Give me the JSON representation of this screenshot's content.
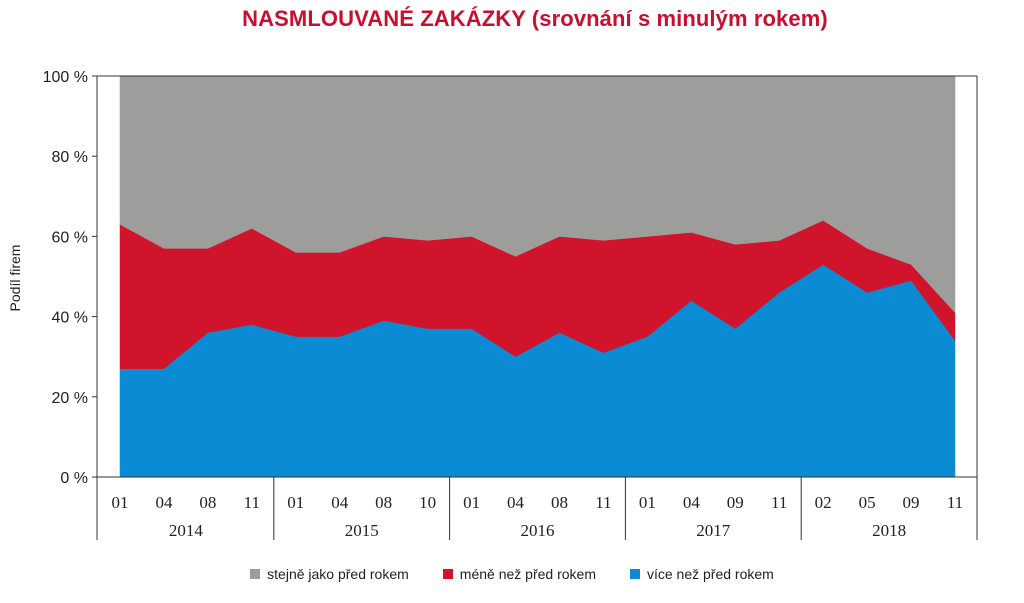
{
  "chart_data": {
    "type": "area",
    "stacked": true,
    "title": "NASMLOUVANÉ ZAKÁZKY (srovnání s minulým rokem)",
    "ylabel": "Podíl firem",
    "ylim": [
      0,
      100
    ],
    "y_ticks": [
      "0 %",
      "20 %",
      "40 %",
      "60 %",
      "80 %",
      "100 %"
    ],
    "y_tick_values": [
      0,
      20,
      40,
      60,
      80,
      100
    ],
    "categories": [
      "01",
      "04",
      "08",
      "11",
      "01",
      "04",
      "08",
      "10",
      "01",
      "04",
      "08",
      "11",
      "01",
      "04",
      "09",
      "11",
      "02",
      "05",
      "09",
      "11"
    ],
    "years": [
      {
        "label": "2014",
        "count": 4
      },
      {
        "label": "2015",
        "count": 4
      },
      {
        "label": "2016",
        "count": 4
      },
      {
        "label": "2017",
        "count": 4
      },
      {
        "label": "2018",
        "count": 4
      }
    ],
    "series": [
      {
        "name": "více než před rokem",
        "color": "#0a8bd3",
        "values": [
          27,
          27,
          36,
          38,
          35,
          35,
          39,
          37,
          37,
          30,
          36,
          31,
          35,
          44,
          37,
          46,
          53,
          46,
          49,
          34
        ]
      },
      {
        "name": "méně než před rokem",
        "color": "#d0142c",
        "values": [
          36,
          30,
          21,
          24,
          21,
          21,
          21,
          22,
          23,
          25,
          24,
          28,
          25,
          17,
          21,
          13,
          11,
          11,
          4,
          7
        ]
      },
      {
        "name": "stejně jako před rokem",
        "color": "#9d9d9c",
        "values": [
          37,
          43,
          43,
          38,
          44,
          44,
          40,
          41,
          40,
          45,
          40,
          41,
          40,
          39,
          42,
          41,
          36,
          43,
          47,
          59
        ]
      }
    ],
    "legend_order": [
      "stejně jako před rokem",
      "méně než před rokem",
      "více než před rokem"
    ],
    "legend_position": "bottom",
    "grid": false
  }
}
